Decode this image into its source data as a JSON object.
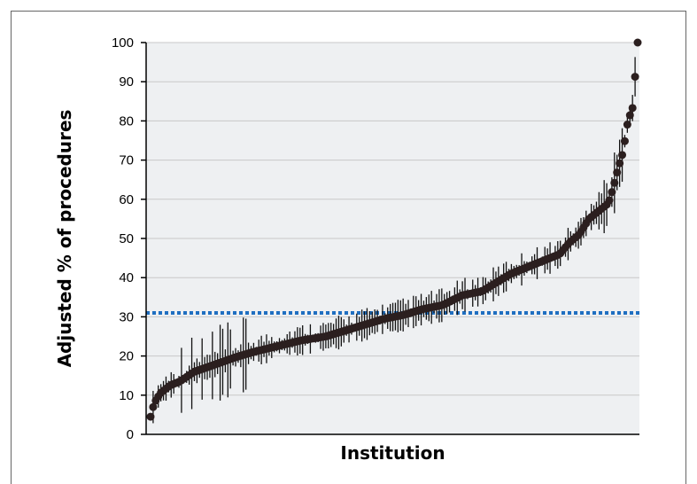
{
  "chart_data": {
    "type": "scatter",
    "title": "",
    "xlabel": "Institution",
    "ylabel": "Adjusted % of procedures",
    "ylim": [
      0,
      100
    ],
    "yticks": [
      0,
      10,
      20,
      30,
      40,
      50,
      60,
      70,
      80,
      90,
      100
    ],
    "grid": true,
    "reference_line": {
      "value": 31,
      "style": "dotted",
      "color": "#1f6fc1"
    },
    "colors": {
      "points": "#2b1f1f",
      "error_bars": "#111111",
      "plot_background": "#eef0f2",
      "grid": "#c8c8c8"
    },
    "anchors": {
      "x": [
        0,
        0.0075,
        0.02,
        0.04,
        0.06,
        0.09,
        0.125,
        0.17,
        0.21,
        0.26,
        0.31,
        0.36,
        0.4,
        0.44,
        0.48,
        0.52,
        0.56,
        0.6,
        0.64,
        0.68,
        0.7,
        0.74,
        0.8,
        0.84,
        0.86,
        0.88,
        0.9,
        0.92,
        0.94,
        0.95,
        0.96,
        0.97,
        0.98,
        0.99,
        1.0
      ],
      "y": [
        4.5,
        8,
        10.5,
        12.5,
        13.5,
        16,
        17.5,
        19.5,
        21,
        22.5,
        24,
        25,
        26.5,
        28,
        29.5,
        30.5,
        32,
        33,
        35.5,
        36.5,
        38,
        41,
        44,
        46,
        49,
        51,
        55,
        57,
        59,
        63,
        68,
        72,
        80,
        83.5,
        100
      ]
    },
    "n_points": 190,
    "error_spread": 2.2
  }
}
